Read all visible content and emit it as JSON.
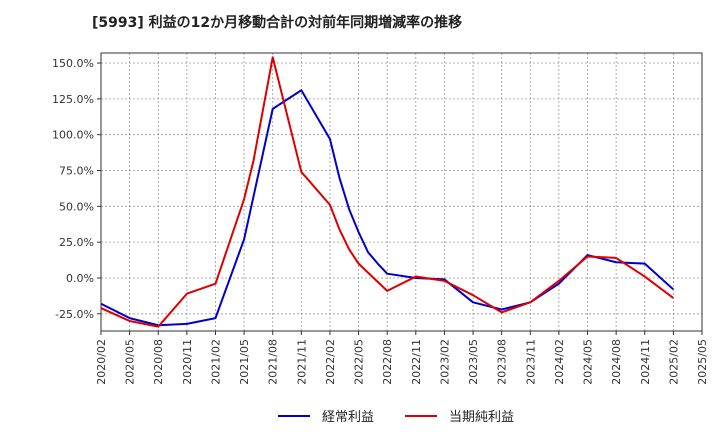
{
  "chart_data": {
    "type": "line",
    "title": "[5993]  利益の12か月移動合計の対前年同期増減率の推移",
    "xlabel": "",
    "ylabel": "",
    "ylim": [
      -37,
      157
    ],
    "y_ticks": [
      150,
      125,
      100,
      75,
      50,
      25,
      0,
      -25
    ],
    "y_tick_labels": [
      "150.0%",
      "125.0%",
      "100.0%",
      "75.0%",
      "50.0%",
      "25.0%",
      "0.0%",
      "-25.0%"
    ],
    "x_tick_labels": [
      "2020/02",
      "2020/05",
      "2020/08",
      "2020/11",
      "2021/02",
      "2021/05",
      "2021/08",
      "2021/11",
      "2022/02",
      "2022/05",
      "2022/08",
      "2022/11",
      "2023/02",
      "2023/05",
      "2023/08",
      "2023/11",
      "2024/02",
      "2024/05",
      "2024/08",
      "2024/11",
      "2025/02",
      "2025/05"
    ],
    "grid": true,
    "legend_position": "bottom",
    "series": [
      {
        "name": "経常利益",
        "color": "#0000cc",
        "points": [
          {
            "x": 0,
            "y": -18
          },
          {
            "x": 1,
            "y": -28
          },
          {
            "x": 2,
            "y": -33
          },
          {
            "x": 3,
            "y": -32
          },
          {
            "x": 4,
            "y": -28
          },
          {
            "x": 5,
            "y": 27
          },
          {
            "x": 6,
            "y": 118
          },
          {
            "x": 7,
            "y": 131
          },
          {
            "x": 8,
            "y": 97
          },
          {
            "x": 8.33,
            "y": 70
          },
          {
            "x": 8.67,
            "y": 48
          },
          {
            "x": 9,
            "y": 32
          },
          {
            "x": 9.33,
            "y": 18
          },
          {
            "x": 9.67,
            "y": 10
          },
          {
            "x": 10,
            "y": 3
          },
          {
            "x": 11,
            "y": 0
          },
          {
            "x": 12,
            "y": -1
          },
          {
            "x": 13,
            "y": -17
          },
          {
            "x": 14,
            "y": -22
          },
          {
            "x": 15,
            "y": -17
          },
          {
            "x": 16,
            "y": -4
          },
          {
            "x": 17,
            "y": 16
          },
          {
            "x": 18,
            "y": 11
          },
          {
            "x": 19,
            "y": 10
          },
          {
            "x": 20,
            "y": -8
          }
        ]
      },
      {
        "name": "当期純利益",
        "color": "#dd0000",
        "points": [
          {
            "x": 0,
            "y": -21
          },
          {
            "x": 1,
            "y": -30
          },
          {
            "x": 2,
            "y": -34
          },
          {
            "x": 3,
            "y": -11
          },
          {
            "x": 4,
            "y": -4
          },
          {
            "x": 5,
            "y": 55
          },
          {
            "x": 5.33,
            "y": 82
          },
          {
            "x": 6,
            "y": 154
          },
          {
            "x": 7,
            "y": 74
          },
          {
            "x": 8,
            "y": 51
          },
          {
            "x": 8.33,
            "y": 34
          },
          {
            "x": 8.67,
            "y": 20
          },
          {
            "x": 9,
            "y": 10
          },
          {
            "x": 10,
            "y": -9
          },
          {
            "x": 11,
            "y": 1
          },
          {
            "x": 12,
            "y": -2
          },
          {
            "x": 13,
            "y": -12
          },
          {
            "x": 14,
            "y": -24
          },
          {
            "x": 15,
            "y": -17
          },
          {
            "x": 16,
            "y": -2
          },
          {
            "x": 17,
            "y": 15
          },
          {
            "x": 18,
            "y": 14
          },
          {
            "x": 19,
            "y": 1
          },
          {
            "x": 20,
            "y": -14
          }
        ]
      }
    ]
  }
}
